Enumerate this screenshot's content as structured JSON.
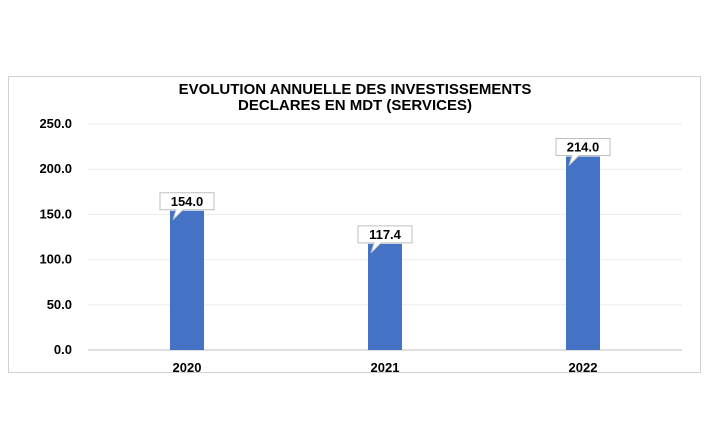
{
  "chart_data": {
    "type": "bar",
    "title_lines": [
      "EVOLUTION ANNUELLE DES INVESTISSEMENTS",
      "DECLARES EN MDT (SERVICES)"
    ],
    "categories": [
      "2020",
      "2021",
      "2022"
    ],
    "values": [
      154.0,
      117.4,
      214.0
    ],
    "data_labels": [
      "154.0",
      "117.4",
      "214.0"
    ],
    "yticks": [
      0,
      50,
      100,
      150,
      200,
      250
    ],
    "ytick_labels": [
      "0.0",
      "50.0",
      "100.0",
      "150.0",
      "200.0",
      "250.0"
    ],
    "ylim": [
      0,
      250
    ],
    "grid": true,
    "legend": "none",
    "bar_color": "#4472C4"
  }
}
